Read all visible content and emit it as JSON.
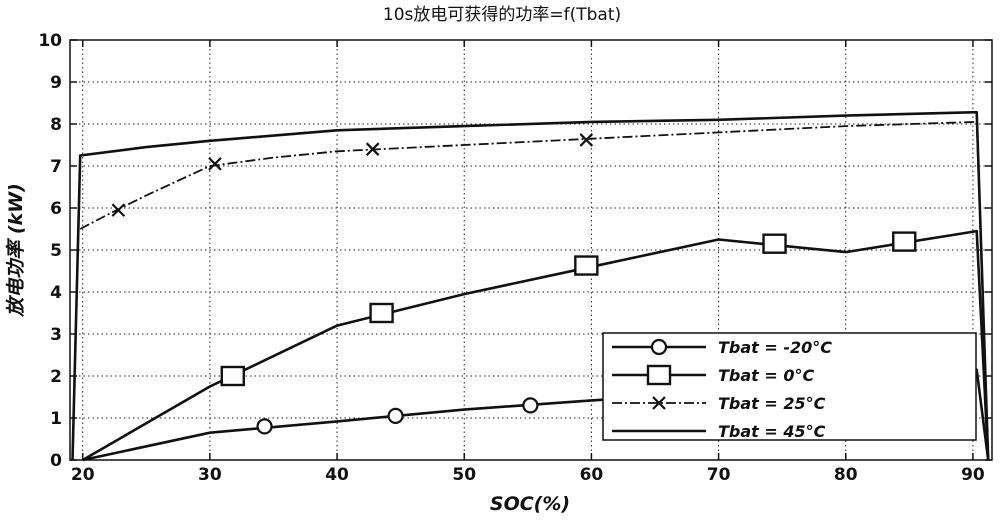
{
  "chart_data": {
    "type": "line",
    "title": "10s放电可获得的功率=f(Tbat)",
    "xlabel": "SOC(%)",
    "ylabel": "放电功率 (kW)",
    "xlim": [
      19,
      91.5
    ],
    "ylim": [
      0,
      10
    ],
    "xticks": [
      "20",
      "30",
      "40",
      "50",
      "60",
      "70",
      "80",
      "90"
    ],
    "yticks": [
      "0",
      "1",
      "2",
      "3",
      "4",
      "5",
      "6",
      "7",
      "8",
      "9",
      "10"
    ],
    "grid": true,
    "legend_position": "bottom-right",
    "series": [
      {
        "name": "Tbat = -20°C",
        "marker": "circle",
        "line_style": "solid",
        "points": [
          [
            20,
            0
          ],
          [
            30,
            0.65
          ],
          [
            40,
            0.92
          ],
          [
            50,
            1.2
          ],
          [
            60,
            1.42
          ],
          [
            70,
            1.6
          ],
          [
            80,
            1.85
          ],
          [
            88,
            2.1
          ],
          [
            90.3,
            2.15
          ],
          [
            91.2,
            0
          ]
        ],
        "marker_points": [
          [
            34.3,
            0.8
          ],
          [
            44.6,
            1.05
          ],
          [
            55.2,
            1.3
          ],
          [
            87.5,
            2.1
          ]
        ]
      },
      {
        "name": "Tbat = 0°C",
        "marker": "square",
        "line_style": "solid",
        "points": [
          [
            20,
            0
          ],
          [
            30,
            1.75
          ],
          [
            40,
            3.2
          ],
          [
            50,
            3.95
          ],
          [
            60,
            4.6
          ],
          [
            70,
            5.25
          ],
          [
            80,
            4.95
          ],
          [
            90.3,
            5.45
          ],
          [
            91.2,
            0
          ]
        ],
        "marker_points": [
          [
            31.8,
            2.0
          ],
          [
            43.5,
            3.5
          ],
          [
            59.6,
            4.63
          ],
          [
            74.4,
            5.15
          ],
          [
            84.6,
            5.2
          ]
        ]
      },
      {
        "name": "Tbat = 25°C",
        "marker": "x",
        "line_style": "dash-dot",
        "points": [
          [
            19.8,
            5.5
          ],
          [
            22,
            5.85
          ],
          [
            25,
            6.3
          ],
          [
            30,
            7.0
          ],
          [
            35,
            7.2
          ],
          [
            40,
            7.35
          ],
          [
            50,
            7.5
          ],
          [
            60,
            7.65
          ],
          [
            70,
            7.8
          ],
          [
            80,
            7.95
          ],
          [
            90.3,
            8.05
          ],
          [
            91.2,
            0
          ]
        ],
        "marker_points": [
          [
            22.8,
            5.95
          ],
          [
            30.4,
            7.05
          ],
          [
            42.8,
            7.4
          ],
          [
            59.6,
            7.62
          ]
        ]
      },
      {
        "name": "Tbat = 45°C",
        "marker": "none",
        "line_style": "solid",
        "points": [
          [
            19.2,
            0
          ],
          [
            19.8,
            7.25
          ],
          [
            25,
            7.45
          ],
          [
            30,
            7.6
          ],
          [
            40,
            7.85
          ],
          [
            50,
            7.95
          ],
          [
            60,
            8.05
          ],
          [
            70,
            8.1
          ],
          [
            80,
            8.2
          ],
          [
            90.3,
            8.28
          ],
          [
            91.2,
            0
          ]
        ],
        "marker_points": []
      }
    ]
  }
}
